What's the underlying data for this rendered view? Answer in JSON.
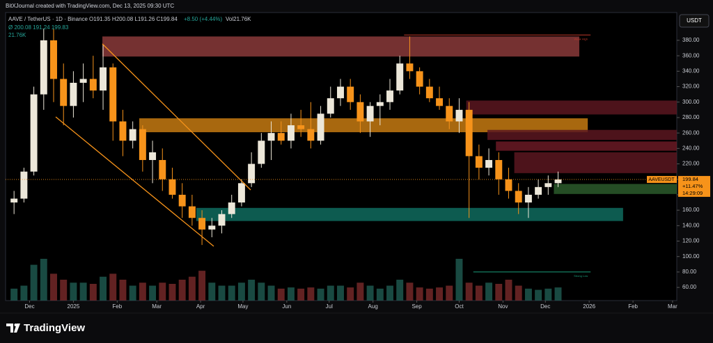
{
  "header": {
    "credit": "BitXJournal created with TradingView.com, Dec 13, 2025 09:30 UTC",
    "currency_button": "USDT",
    "brand": "TradingView"
  },
  "chart_data": {
    "type": "candlestick",
    "symbol": "AAVE / TetherUS · 1D · Binance",
    "ohlc_text": "O191.35 H200.08 L191.26 C199.84",
    "change_text": "+8.50 (+4.44%)",
    "volume_text": "Vol21.76K",
    "indicator_text": "Ø  200.08  191.24  199.83",
    "indicator_volume": "21.76K",
    "up_color": "#ece7d9",
    "down_color": "#f7931a",
    "volume_up_color": "#1f5c52",
    "volume_down_color": "#7a2a2a",
    "x": [
      0,
      7,
      14,
      21,
      28,
      35,
      42,
      49,
      56,
      63,
      70,
      77,
      84,
      91,
      98,
      105,
      112,
      119,
      126,
      133,
      140,
      147,
      154,
      161,
      168,
      175,
      182,
      189,
      196,
      203,
      210,
      217,
      224,
      231,
      238,
      245,
      252,
      259,
      266,
      273,
      280,
      287,
      294,
      301,
      308,
      315,
      322,
      329,
      336,
      343,
      350,
      357,
      364,
      371,
      378,
      385
    ],
    "open": [
      170,
      175,
      210,
      310,
      380,
      330,
      295,
      325,
      330,
      315,
      345,
      275,
      250,
      265,
      225,
      225,
      200,
      180,
      165,
      150,
      135,
      140,
      155,
      170,
      195,
      220,
      250,
      260,
      250,
      270,
      265,
      250,
      285,
      305,
      320,
      300,
      275,
      295,
      300,
      315,
      350,
      340,
      320,
      305,
      295,
      275,
      290,
      230,
      215,
      225,
      200,
      185,
      170,
      180,
      190,
      195
    ],
    "high": [
      185,
      215,
      320,
      395,
      395,
      350,
      340,
      350,
      360,
      375,
      350,
      290,
      275,
      270,
      250,
      240,
      215,
      195,
      180,
      160,
      150,
      160,
      180,
      200,
      235,
      260,
      275,
      275,
      285,
      290,
      300,
      295,
      320,
      330,
      330,
      310,
      300,
      310,
      330,
      360,
      385,
      345,
      330,
      320,
      305,
      305,
      300,
      245,
      240,
      235,
      215,
      195,
      190,
      200,
      205,
      210
    ],
    "low": [
      155,
      170,
      205,
      290,
      300,
      270,
      280,
      300,
      305,
      290,
      250,
      230,
      240,
      210,
      195,
      185,
      175,
      150,
      140,
      115,
      125,
      130,
      150,
      165,
      190,
      215,
      225,
      245,
      240,
      255,
      240,
      245,
      280,
      295,
      290,
      260,
      255,
      270,
      290,
      310,
      330,
      310,
      300,
      290,
      265,
      260,
      150,
      200,
      205,
      180,
      175,
      155,
      150,
      175,
      180,
      190
    ],
    "close": [
      175,
      210,
      310,
      380,
      330,
      295,
      325,
      330,
      315,
      345,
      275,
      250,
      265,
      225,
      235,
      200,
      180,
      165,
      150,
      135,
      140,
      155,
      170,
      195,
      220,
      250,
      260,
      250,
      270,
      265,
      250,
      285,
      305,
      320,
      300,
      275,
      295,
      300,
      315,
      350,
      340,
      320,
      305,
      295,
      275,
      290,
      230,
      215,
      225,
      200,
      185,
      170,
      180,
      190,
      195,
      199.84
    ],
    "volume": [
      20,
      25,
      60,
      70,
      45,
      35,
      30,
      30,
      28,
      40,
      45,
      35,
      25,
      30,
      25,
      30,
      28,
      35,
      40,
      50,
      30,
      25,
      25,
      30,
      35,
      30,
      25,
      20,
      22,
      20,
      22,
      20,
      25,
      25,
      22,
      30,
      25,
      20,
      25,
      35,
      30,
      22,
      20,
      22,
      25,
      70,
      30,
      25,
      30,
      28,
      35,
      25,
      20,
      18,
      20,
      22
    ],
    "zones": [
      {
        "top": 385,
        "bottom": 359,
        "start": 62.5,
        "end": 400,
        "color": "#8a3a3a"
      },
      {
        "top": 279,
        "bottom": 261,
        "start": 88.6,
        "end": 406,
        "color": "#c67a12"
      },
      {
        "top": 163,
        "bottom": 146,
        "start": 129,
        "end": 431,
        "color": "#0f6b5e"
      },
      {
        "top": 302,
        "bottom": 284,
        "start": 320,
        "end": 469,
        "color": "#5a1620"
      },
      {
        "top": 264,
        "bottom": 251,
        "start": 335,
        "end": 469,
        "color": "#5a1620"
      },
      {
        "top": 249,
        "bottom": 237,
        "start": 341,
        "end": 469,
        "color": "#6a1a24"
      },
      {
        "top": 235,
        "bottom": 208,
        "start": 354,
        "end": 469,
        "color": "#5a1620"
      },
      {
        "top": 194,
        "bottom": 181,
        "start": 382,
        "end": 469,
        "color": "#2c5a2c"
      }
    ],
    "levels": [
      {
        "label": "Weak High",
        "value": 387,
        "start": 276,
        "end": 408,
        "color": "#c0392b"
      },
      {
        "label": "Strong Low",
        "value": 80,
        "start": 325,
        "end": 408,
        "color": "#1a9e7a"
      }
    ],
    "last_price": 199.84,
    "last_symbol": "AAVEUSDT",
    "last_change": "+11.47%",
    "countdown": "14:29:09",
    "last_color": "#f7931a",
    "xlim": [
      -6,
      469
    ],
    "ylim": [
      43,
      416
    ],
    "xticks": [
      {
        "value": 11,
        "label": "Dec"
      },
      {
        "value": 42,
        "label": "2025"
      },
      {
        "value": 73,
        "label": "Feb"
      },
      {
        "value": 101,
        "label": "Mar"
      },
      {
        "value": 132,
        "label": "Apr"
      },
      {
        "value": 162,
        "label": "May"
      },
      {
        "value": 193,
        "label": "Jun"
      },
      {
        "value": 223,
        "label": "Jul"
      },
      {
        "value": 254,
        "label": "Aug"
      },
      {
        "value": 285,
        "label": "Sep"
      },
      {
        "value": 315,
        "label": "Oct"
      },
      {
        "value": 346,
        "label": "Nov"
      },
      {
        "value": 376,
        "label": "Dec"
      },
      {
        "value": 407,
        "label": "2026"
      },
      {
        "value": 438,
        "label": "Feb"
      },
      {
        "value": 466,
        "label": "Mar"
      }
    ],
    "yticks": [
      {
        "value": 60,
        "label": "60.00"
      },
      {
        "value": 80,
        "label": "80.00"
      },
      {
        "value": 100,
        "label": "100.00"
      },
      {
        "value": 120,
        "label": "120.00"
      },
      {
        "value": 140,
        "label": "140.00"
      },
      {
        "value": 160,
        "label": "160.00"
      },
      {
        "value": 180,
        "label": "180.00"
      },
      {
        "value": 200,
        "label": "200.00"
      },
      {
        "value": 220,
        "label": "220.00"
      },
      {
        "value": 240,
        "label": "240.00"
      },
      {
        "value": 260,
        "label": "260.00"
      },
      {
        "value": 280,
        "label": "280.00"
      },
      {
        "value": 300,
        "label": "300.00"
      },
      {
        "value": 320,
        "label": "320.00"
      },
      {
        "value": 340,
        "label": "340.00"
      },
      {
        "value": 360,
        "label": "360.00"
      },
      {
        "value": 380,
        "label": "380.00"
      }
    ]
  }
}
